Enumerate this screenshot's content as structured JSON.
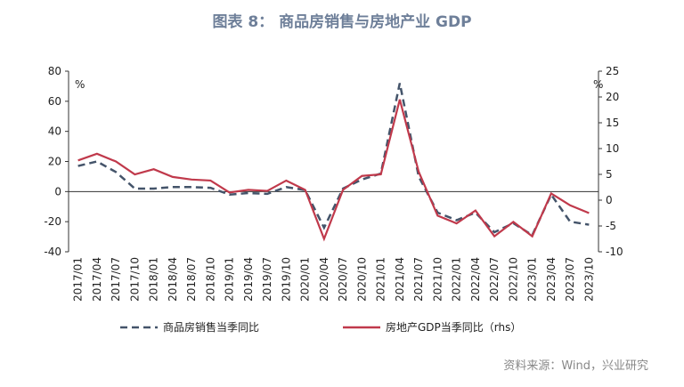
{
  "chart_data": {
    "type": "line",
    "title": "图表 8：  商品房销售与房地产业 GDP",
    "y_unit": "%",
    "y2_unit": "%",
    "source": "资料来源：Wind，兴业研究",
    "categories": [
      "2017/01",
      "2017/04",
      "2017/07",
      "2017/10",
      "2018/01",
      "2018/04",
      "2018/07",
      "2018/10",
      "2019/01",
      "2019/04",
      "2019/07",
      "2019/10",
      "2020/01",
      "2020/04",
      "2020/07",
      "2020/10",
      "2021/01",
      "2021/04",
      "2021/07",
      "2021/10",
      "2022/01",
      "2022/04",
      "2022/07",
      "2022/10",
      "2023/01",
      "2023/04",
      "2023/07",
      "2023/10"
    ],
    "ylim": [
      -40,
      80
    ],
    "yticks": [
      -40,
      -20,
      0,
      20,
      40,
      60,
      80
    ],
    "y2lim": [
      -10,
      25
    ],
    "y2ticks": [
      -10,
      -5,
      0,
      5,
      10,
      15,
      20,
      25
    ],
    "series": [
      {
        "name": "商品房销售当季同比",
        "color": "#44546a",
        "dash": true,
        "values": [
          17,
          20,
          13,
          2,
          2,
          3,
          3,
          2.5,
          -2,
          -1,
          -1.5,
          3,
          1,
          -24,
          2,
          8,
          12,
          72,
          10,
          -14,
          -19,
          -14,
          -27,
          -21,
          -29,
          -2,
          -20,
          -22
        ]
      },
      {
        "name": "房地产GDP当季同比（rhs）",
        "color": "#c0394b",
        "axis": "y2",
        "values": [
          7.7,
          9,
          7.5,
          5,
          6,
          4.5,
          4,
          3.8,
          1.5,
          2,
          1.8,
          3.8,
          2,
          -7.5,
          2,
          4.7,
          5,
          19.5,
          5.5,
          -3,
          -4.5,
          -2,
          -7,
          -4.2,
          -7,
          1.3,
          -1,
          -2.5
        ]
      }
    ]
  }
}
